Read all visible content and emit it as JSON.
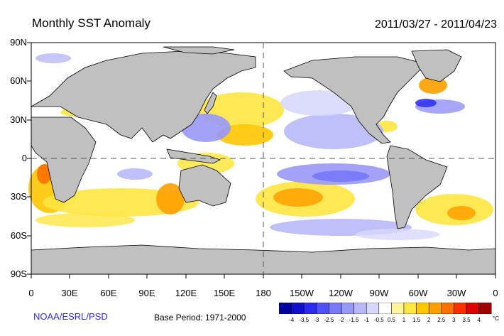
{
  "header": {
    "title": "Monthly SST Anomaly",
    "period": "2011/03/27 - 2011/04/23"
  },
  "axes": {
    "y_labels": [
      "90N",
      "60N",
      "30N",
      "0",
      "30S",
      "60S",
      "90S"
    ],
    "x_labels": [
      "0",
      "30E",
      "60E",
      "90E",
      "120E",
      "150E",
      "180",
      "150W",
      "120W",
      "90W",
      "60W",
      "30W",
      "0"
    ]
  },
  "footer": {
    "credit": "NOAA/ESRL/PSD",
    "base_period": "Base Period: 1971-2000"
  },
  "colorbar": {
    "labels": [
      "-4",
      "-3.5",
      "-3",
      "-2.5",
      "-2",
      "-1.5",
      "-1",
      "-0.5",
      "0.5",
      "1",
      "1.5",
      "2",
      "2.5",
      "3",
      "3.5",
      "4"
    ],
    "unit": "°C",
    "colors": [
      "#0000a0",
      "#1010d0",
      "#2a2af0",
      "#5050f8",
      "#7878f8",
      "#9898f8",
      "#b8b8f8",
      "#d8d8fc",
      "#ffffff",
      "#fff5a0",
      "#ffe640",
      "#ffc800",
      "#ffa000",
      "#ff7000",
      "#ff3000",
      "#e00000",
      "#a00000"
    ]
  },
  "map": {
    "projection": "cylindrical equidistant",
    "land_color": "#c0c0c0",
    "equator_dashed": true,
    "dateline_dashed": true
  }
}
